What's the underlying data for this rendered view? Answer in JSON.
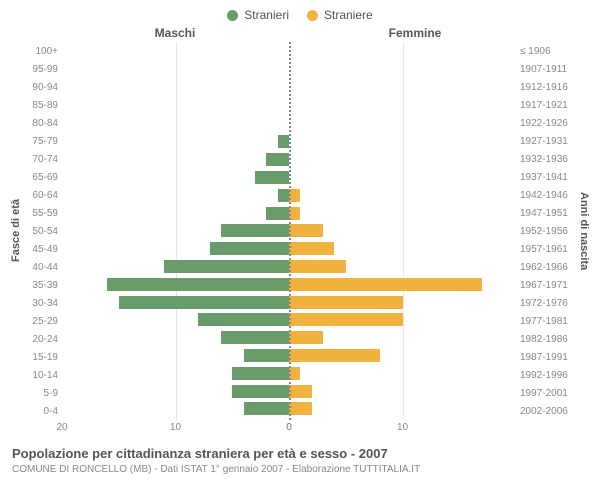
{
  "legend": {
    "male": {
      "label": "Stranieri",
      "color": "#6a9b6a"
    },
    "female": {
      "label": "Straniere",
      "color": "#f0b13e"
    }
  },
  "headers": {
    "male": "Maschi",
    "female": "Femmine"
  },
  "ylabels": {
    "left": "Fasce di età",
    "right": "Anni di nascita"
  },
  "xmax": 20,
  "xticks_left": [
    20,
    10,
    0
  ],
  "xticks_right": [
    0,
    10
  ],
  "grid_color": "#e8e8e8",
  "centerline_color": "#888888",
  "background": "#ffffff",
  "rows": [
    {
      "age": "100+",
      "birth": "≤ 1906",
      "m": 0,
      "f": 0
    },
    {
      "age": "95-99",
      "birth": "1907-1911",
      "m": 0,
      "f": 0
    },
    {
      "age": "90-94",
      "birth": "1912-1916",
      "m": 0,
      "f": 0
    },
    {
      "age": "85-89",
      "birth": "1917-1921",
      "m": 0,
      "f": 0
    },
    {
      "age": "80-84",
      "birth": "1922-1926",
      "m": 0,
      "f": 0
    },
    {
      "age": "75-79",
      "birth": "1927-1931",
      "m": 1,
      "f": 0
    },
    {
      "age": "70-74",
      "birth": "1932-1936",
      "m": 2,
      "f": 0
    },
    {
      "age": "65-69",
      "birth": "1937-1941",
      "m": 3,
      "f": 0
    },
    {
      "age": "60-64",
      "birth": "1942-1946",
      "m": 1,
      "f": 1
    },
    {
      "age": "55-59",
      "birth": "1947-1951",
      "m": 2,
      "f": 1
    },
    {
      "age": "50-54",
      "birth": "1952-1956",
      "m": 6,
      "f": 3
    },
    {
      "age": "45-49",
      "birth": "1957-1961",
      "m": 7,
      "f": 4
    },
    {
      "age": "40-44",
      "birth": "1962-1966",
      "m": 11,
      "f": 5
    },
    {
      "age": "35-39",
      "birth": "1967-1971",
      "m": 16,
      "f": 17
    },
    {
      "age": "30-34",
      "birth": "1972-1976",
      "m": 15,
      "f": 10
    },
    {
      "age": "25-29",
      "birth": "1977-1981",
      "m": 8,
      "f": 10
    },
    {
      "age": "20-24",
      "birth": "1982-1986",
      "m": 6,
      "f": 3
    },
    {
      "age": "15-19",
      "birth": "1987-1991",
      "m": 4,
      "f": 8
    },
    {
      "age": "10-14",
      "birth": "1992-1996",
      "m": 5,
      "f": 1
    },
    {
      "age": "5-9",
      "birth": "1997-2001",
      "m": 5,
      "f": 2
    },
    {
      "age": "0-4",
      "birth": "2002-2006",
      "m": 4,
      "f": 2
    }
  ],
  "footer": {
    "line1": "Popolazione per cittadinanza straniera per età e sesso - 2007",
    "line2": "COMUNE DI RONCELLO (MB) - Dati ISTAT 1° gennaio 2007 - Elaborazione TUTTITALIA.IT"
  }
}
